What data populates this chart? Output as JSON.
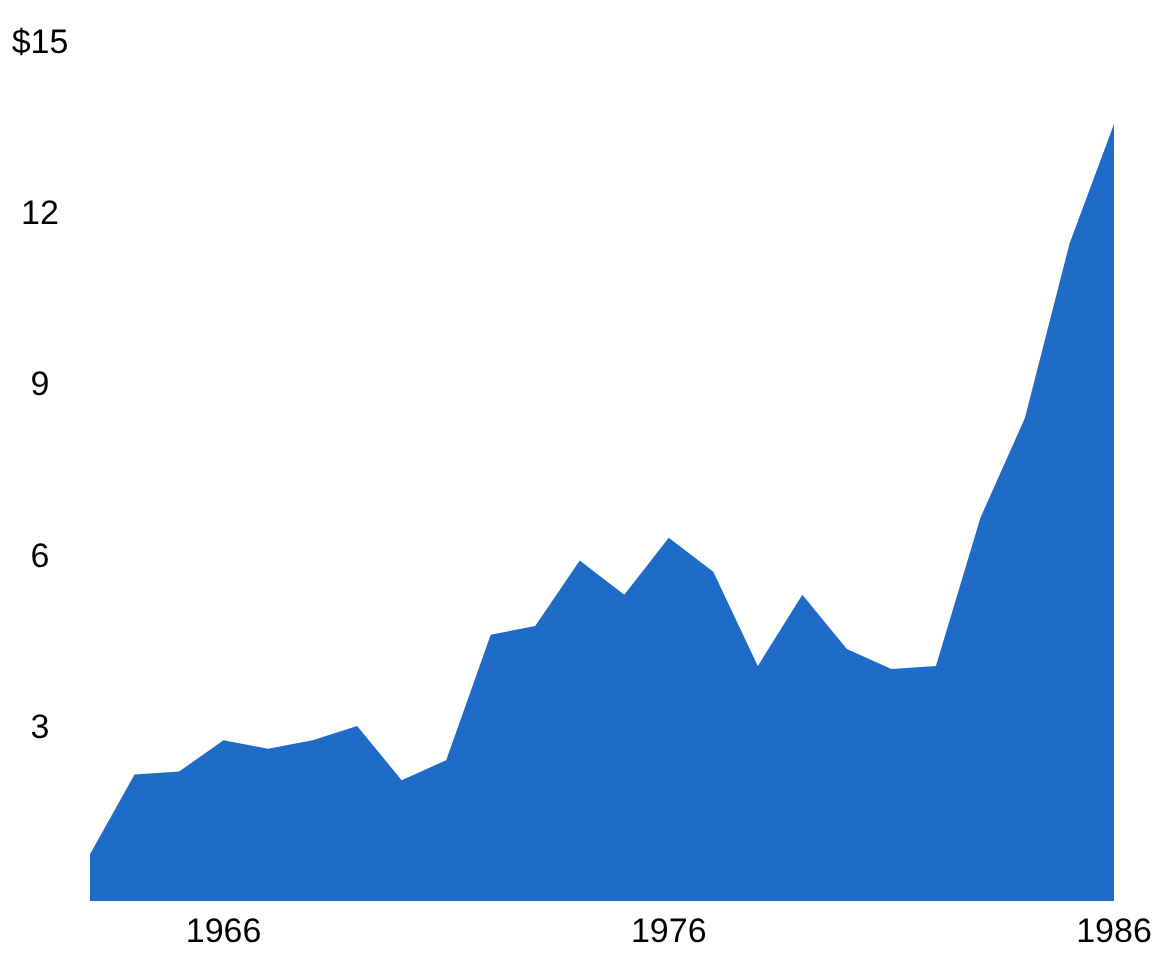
{
  "chart_data": {
    "type": "area",
    "x": [
      1963,
      1964,
      1965,
      1966,
      1967,
      1968,
      1969,
      1970,
      1971,
      1972,
      1973,
      1974,
      1975,
      1976,
      1977,
      1978,
      1979,
      1980,
      1981,
      1982,
      1983,
      1984,
      1985,
      1986
    ],
    "series": [
      {
        "color": "#1e6cc8",
        "values": [
          0.8,
          2.2,
          2.25,
          2.8,
          2.65,
          2.8,
          3.05,
          2.1,
          2.45,
          4.65,
          4.8,
          5.95,
          5.35,
          6.35,
          5.75,
          4.1,
          5.35,
          4.4,
          4.05,
          4.1,
          6.7,
          8.45,
          11.5,
          13.6
        ]
      }
    ],
    "xlim": [
      1963,
      1986
    ],
    "xticks": [
      1966,
      1976,
      1986
    ],
    "ylim": [
      0,
      15
    ],
    "yticks": [
      3,
      6,
      9,
      12,
      {
        "value": 15,
        "label": "$15"
      }
    ],
    "grid": false
  }
}
